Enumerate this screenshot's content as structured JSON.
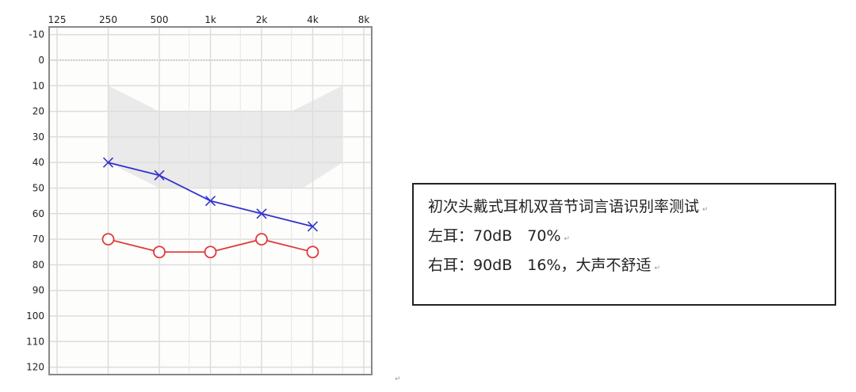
{
  "chart_data": {
    "type": "line",
    "title": "",
    "xlabel": "",
    "ylabel": "",
    "x_scale": "log2",
    "x_tick_labels": [
      "125",
      "250",
      "500",
      "1k",
      "2k",
      "4k",
      "8k"
    ],
    "x_ticks": [
      125,
      250,
      500,
      1000,
      2000,
      4000,
      8000
    ],
    "x_minor_ticks": [
      750,
      1500,
      3000,
      6000
    ],
    "y_ticks": [
      -10,
      0,
      10,
      20,
      30,
      40,
      50,
      60,
      70,
      80,
      90,
      100,
      110,
      120
    ],
    "y_tick_labels": [
      "-10",
      "0",
      "10",
      "20",
      "30",
      "40",
      "50",
      "60",
      "70",
      "80",
      "90",
      "100",
      "110",
      "120"
    ],
    "ylim": [
      -10,
      120
    ],
    "y_inverted": true,
    "grid": true,
    "shaded_region": {
      "color": "#e6e6e6",
      "points": [
        [
          250,
          10
        ],
        [
          500,
          20
        ],
        [
          3000,
          20
        ],
        [
          6000,
          10
        ],
        [
          6000,
          40
        ],
        [
          3500,
          50
        ],
        [
          500,
          50
        ],
        [
          250,
          40
        ]
      ]
    },
    "series": [
      {
        "marker": "x",
        "color": "#3333cc",
        "x": [
          250,
          500,
          1000,
          2000,
          4000
        ],
        "y": [
          40,
          45,
          55,
          60,
          65
        ]
      },
      {
        "marker": "o",
        "color": "#e03a3a",
        "x": [
          250,
          500,
          1000,
          2000,
          4000
        ],
        "y": [
          70,
          75,
          75,
          70,
          75
        ]
      }
    ]
  },
  "info": {
    "lines": [
      "初次头戴式耳机双音节词言语识别率测试",
      "左耳：70dB　70%",
      "右耳：90dB　16%，大声不舒适"
    ],
    "return_mark": "↵"
  }
}
